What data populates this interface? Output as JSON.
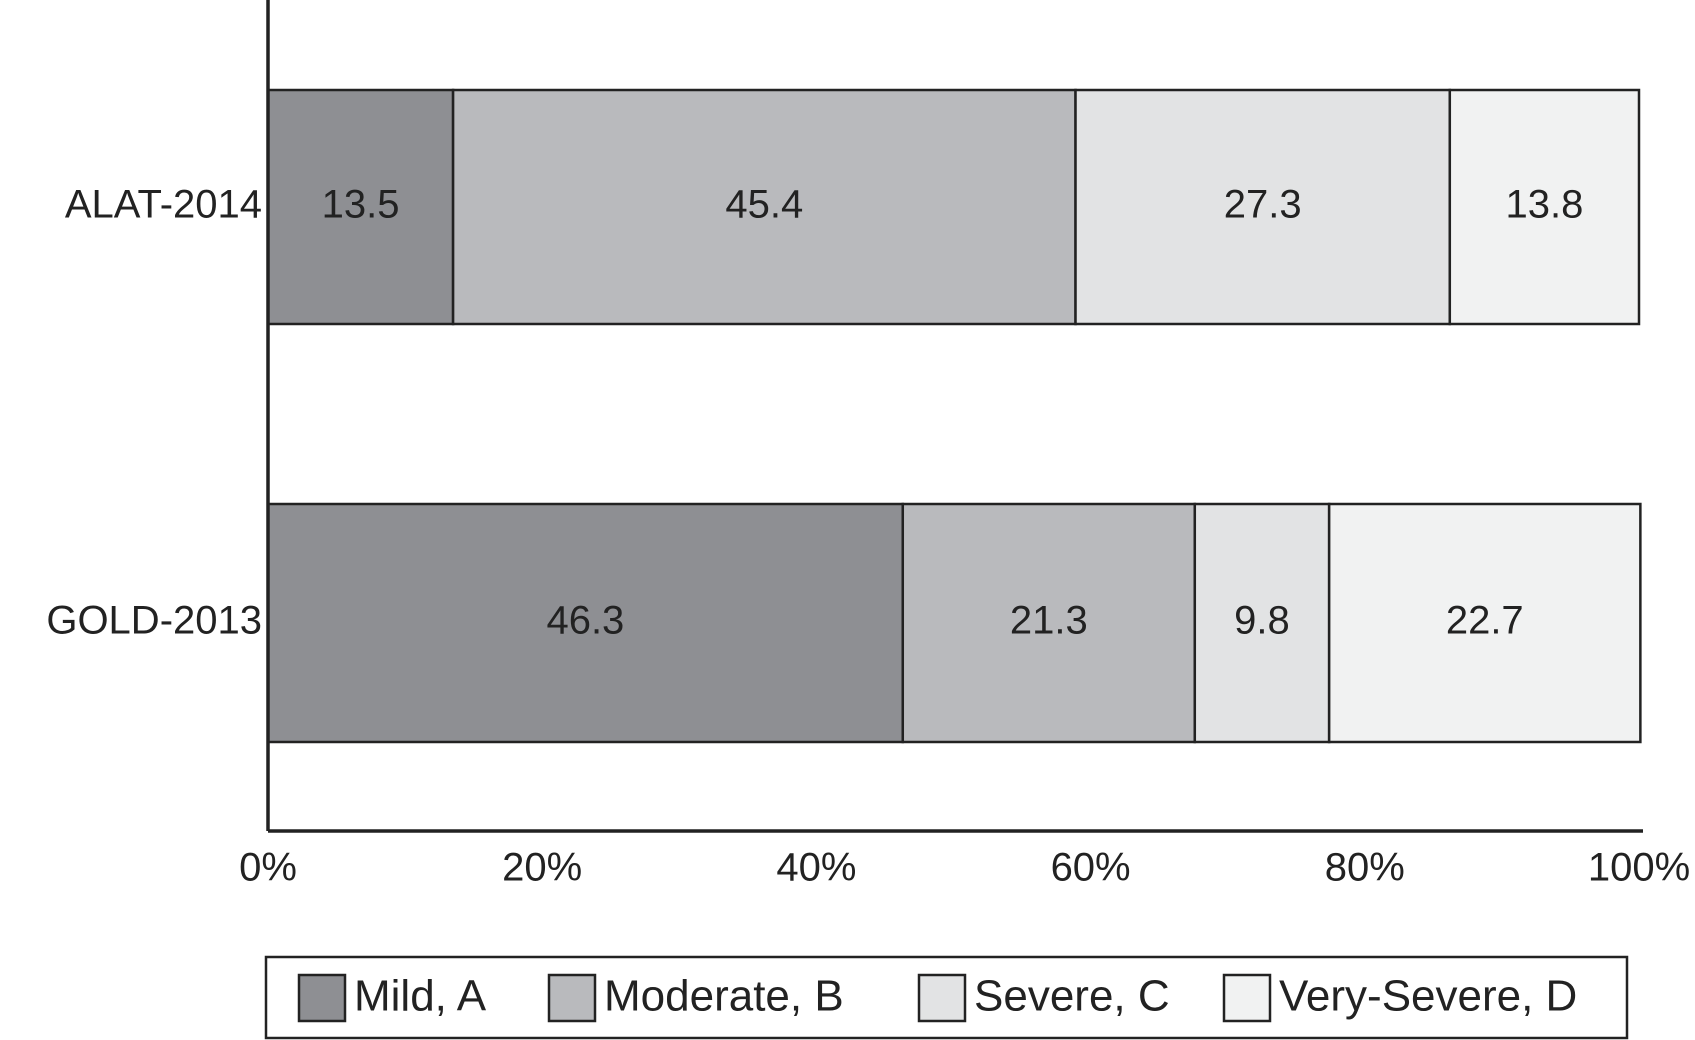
{
  "chart_data": {
    "type": "stacked-bar-horizontal",
    "categories": [
      "ALAT-2014",
      "GOLD-2013"
    ],
    "series": [
      {
        "name": "Mild, A",
        "color": "#8e8f93",
        "values": [
          13.5,
          46.3
        ]
      },
      {
        "name": "Moderate, B",
        "color": "#b9babd",
        "values": [
          45.4,
          21.3
        ]
      },
      {
        "name": "Severe, C",
        "color": "#e2e3e4",
        "values": [
          27.3,
          9.8
        ]
      },
      {
        "name": "Very-Severe, D",
        "color": "#f1f2f2",
        "values": [
          13.8,
          22.7
        ]
      }
    ],
    "xlim": [
      0,
      100
    ],
    "xticks": [
      {
        "value": 0,
        "label": "0%"
      },
      {
        "value": 20,
        "label": "20%"
      },
      {
        "value": 40,
        "label": "40%"
      },
      {
        "value": 60,
        "label": "60%"
      },
      {
        "value": 80,
        "label": "80%"
      },
      {
        "value": 100,
        "label": "100%"
      }
    ],
    "legend": "bottom"
  }
}
